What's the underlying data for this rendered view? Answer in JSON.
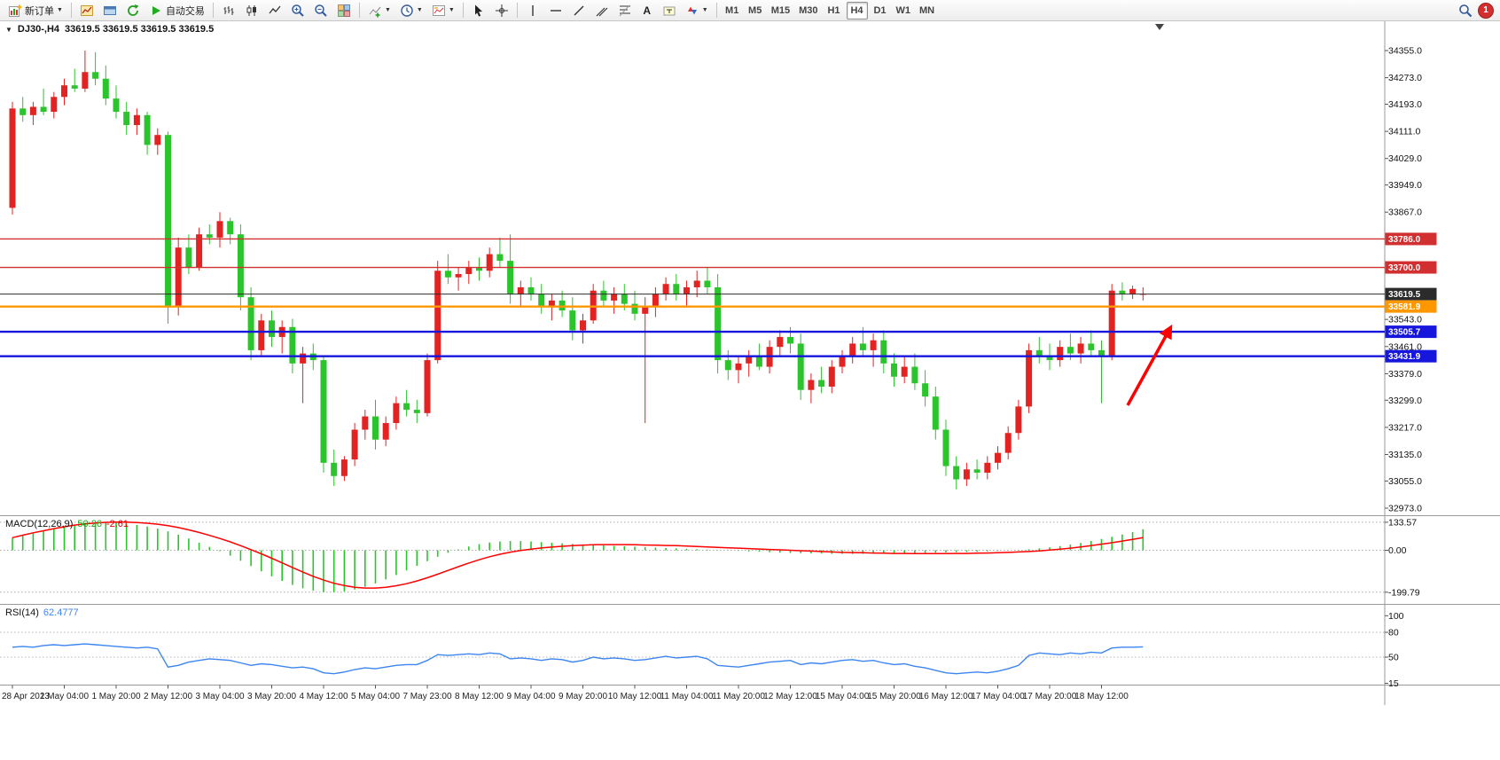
{
  "toolbar": {
    "new_order_label": "新订单",
    "autotrading_label": "自动交易",
    "timeframes": [
      "M1",
      "M5",
      "M15",
      "M30",
      "H1",
      "H4",
      "D1",
      "W1",
      "MN"
    ],
    "active_timeframe": "H4",
    "notification_count": "1"
  },
  "chart": {
    "symbol_period": "DJ30-,H4",
    "ohlc": "33619.5 33619.5 33619.5 33619.5"
  },
  "chart_data": [
    {
      "type": "candlestick",
      "title": "DJ30-,H4",
      "timeframe": "H4",
      "current_price": 33619.5,
      "colors": {
        "up": "#e32222",
        "down": "#2cc42c",
        "current_line": "#2b2b2b",
        "arrow": "#ff0000"
      },
      "y_axis_ticks": [
        "34355.0",
        "34273.0",
        "34193.0",
        "34111.0",
        "34029.0",
        "33949.0",
        "33867.0",
        "33543.0",
        "33461.0",
        "33379.0",
        "33299.0",
        "33217.0",
        "33135.0",
        "33055.0",
        "32973.0"
      ],
      "levels": [
        {
          "label": "33786.0",
          "value": 33786.0,
          "color": "#d23030",
          "thickness": 1.4
        },
        {
          "label": "33700.0",
          "value": 33700.0,
          "color": "#d23030",
          "thickness": 1.4
        },
        {
          "label": "33619.5",
          "value": 33619.5,
          "color": "#2b2b2b",
          "thickness": 1
        },
        {
          "label": "33581.9",
          "value": 33581.9,
          "color": "#ff9800",
          "thickness": 2.4
        },
        {
          "label": "33505.7",
          "value": 33505.7,
          "color": "#1616dd",
          "thickness": 2.4
        },
        {
          "label": "33431.9",
          "value": 33431.9,
          "color": "#1616dd",
          "thickness": 2.4
        }
      ],
      "x_labels": [
        "28 Apr 2023",
        "1 May 04:00",
        "1 May 20:00",
        "2 May 12:00",
        "3 May 04:00",
        "3 May 20:00",
        "4 May 12:00",
        "5 May 04:00",
        "7 May 23:00",
        "8 May 12:00",
        "9 May 04:00",
        "9 May 20:00",
        "10 May 12:00",
        "11 May 04:00",
        "11 May 20:00",
        "12 May 12:00",
        "15 May 04:00",
        "15 May 20:00",
        "16 May 12:00",
        "17 May 04:00",
        "17 May 20:00",
        "18 May 12:00"
      ],
      "x_label_step": 5,
      "candles": [
        [
          33880,
          34200,
          33860,
          34180
        ],
        [
          34180,
          34215,
          34140,
          34160
        ],
        [
          34160,
          34200,
          34130,
          34185
        ],
        [
          34185,
          34240,
          34160,
          34170
        ],
        [
          34170,
          34230,
          34150,
          34215
        ],
        [
          34215,
          34270,
          34190,
          34250
        ],
        [
          34250,
          34300,
          34230,
          34240
        ],
        [
          34240,
          34355,
          34230,
          34290
        ],
        [
          34290,
          34350,
          34250,
          34270
        ],
        [
          34270,
          34310,
          34190,
          34210
        ],
        [
          34210,
          34250,
          34150,
          34170
        ],
        [
          34170,
          34200,
          34100,
          34130
        ],
        [
          34130,
          34180,
          34100,
          34160
        ],
        [
          34160,
          34170,
          34040,
          34070
        ],
        [
          34070,
          34120,
          34040,
          34100
        ],
        [
          34100,
          34110,
          33530,
          33580
        ],
        [
          33580,
          33790,
          33555,
          33760
        ],
        [
          33760,
          33800,
          33680,
          33700
        ],
        [
          33700,
          33820,
          33690,
          33800
        ],
        [
          33800,
          33830,
          33770,
          33790
        ],
        [
          33790,
          33867,
          33760,
          33840
        ],
        [
          33840,
          33850,
          33770,
          33800
        ],
        [
          33800,
          33830,
          33570,
          33610
        ],
        [
          33610,
          33640,
          33420,
          33450
        ],
        [
          33450,
          33560,
          33430,
          33540
        ],
        [
          33540,
          33570,
          33460,
          33490
        ],
        [
          33490,
          33540,
          33440,
          33520
        ],
        [
          33520,
          33545,
          33380,
          33410
        ],
        [
          33410,
          33460,
          33290,
          33440
        ],
        [
          33440,
          33470,
          33390,
          33420
        ],
        [
          33420,
          33430,
          33080,
          33110
        ],
        [
          33110,
          33150,
          33040,
          33070
        ],
        [
          33070,
          33130,
          33055,
          33120
        ],
        [
          33120,
          33230,
          33100,
          33210
        ],
        [
          33210,
          33270,
          33180,
          33250
        ],
        [
          33250,
          33300,
          33150,
          33180
        ],
        [
          33180,
          33250,
          33160,
          33230
        ],
        [
          33230,
          33310,
          33210,
          33290
        ],
        [
          33290,
          33330,
          33250,
          33270
        ],
        [
          33270,
          33300,
          33230,
          33260
        ],
        [
          33260,
          33440,
          33250,
          33420
        ],
        [
          33420,
          33720,
          33410,
          33690
        ],
        [
          33690,
          33740,
          33650,
          33670
        ],
        [
          33670,
          33700,
          33630,
          33680
        ],
        [
          33680,
          33720,
          33650,
          33700
        ],
        [
          33700,
          33730,
          33660,
          33690
        ],
        [
          33690,
          33760,
          33670,
          33740
        ],
        [
          33740,
          33790,
          33700,
          33720
        ],
        [
          33720,
          33800,
          33590,
          33620
        ],
        [
          33620,
          33660,
          33580,
          33640
        ],
        [
          33640,
          33670,
          33600,
          33620
        ],
        [
          33620,
          33650,
          33560,
          33580
        ],
        [
          33580,
          33620,
          33540,
          33600
        ],
        [
          33600,
          33630,
          33550,
          33570
        ],
        [
          33570,
          33610,
          33480,
          33510
        ],
        [
          33510,
          33560,
          33470,
          33540
        ],
        [
          33540,
          33650,
          33530,
          33630
        ],
        [
          33630,
          33660,
          33580,
          33600
        ],
        [
          33600,
          33640,
          33560,
          33620
        ],
        [
          33620,
          33650,
          33570,
          33590
        ],
        [
          33590,
          33630,
          33540,
          33560
        ],
        [
          33560,
          33610,
          33230,
          33580
        ],
        [
          33580,
          33640,
          33550,
          33620
        ],
        [
          33620,
          33670,
          33600,
          33650
        ],
        [
          33650,
          33680,
          33600,
          33620
        ],
        [
          33620,
          33660,
          33580,
          33640
        ],
        [
          33640,
          33690,
          33610,
          33660
        ],
        [
          33660,
          33700,
          33620,
          33640
        ],
        [
          33640,
          33680,
          33380,
          33420
        ],
        [
          33420,
          33450,
          33360,
          33390
        ],
        [
          33390,
          33430,
          33350,
          33410
        ],
        [
          33410,
          33450,
          33370,
          33430
        ],
        [
          33430,
          33470,
          33390,
          33400
        ],
        [
          33400,
          33480,
          33380,
          33460
        ],
        [
          33460,
          33510,
          33430,
          33490
        ],
        [
          33490,
          33520,
          33440,
          33470
        ],
        [
          33470,
          33500,
          33300,
          33330
        ],
        [
          33330,
          33380,
          33290,
          33360
        ],
        [
          33360,
          33400,
          33320,
          33340
        ],
        [
          33340,
          33420,
          33320,
          33400
        ],
        [
          33400,
          33450,
          33380,
          33430
        ],
        [
          33430,
          33490,
          33410,
          33470
        ],
        [
          33470,
          33520,
          33430,
          33450
        ],
        [
          33450,
          33500,
          33400,
          33480
        ],
        [
          33480,
          33510,
          33380,
          33410
        ],
        [
          33410,
          33440,
          33340,
          33370
        ],
        [
          33370,
          33430,
          33350,
          33400
        ],
        [
          33400,
          33440,
          33330,
          33350
        ],
        [
          33350,
          33390,
          33280,
          33310
        ],
        [
          33310,
          33340,
          33180,
          33210
        ],
        [
          33210,
          33240,
          33070,
          33100
        ],
        [
          33100,
          33130,
          33030,
          33060
        ],
        [
          33060,
          33110,
          33040,
          33090
        ],
        [
          33090,
          33120,
          33060,
          33080
        ],
        [
          33080,
          33130,
          33060,
          33110
        ],
        [
          33110,
          33160,
          33090,
          33140
        ],
        [
          33140,
          33220,
          33120,
          33200
        ],
        [
          33200,
          33300,
          33180,
          33280
        ],
        [
          33280,
          33470,
          33260,
          33450
        ],
        [
          33450,
          33490,
          33410,
          33430
        ],
        [
          33430,
          33470,
          33390,
          33420
        ],
        [
          33420,
          33480,
          33400,
          33460
        ],
        [
          33460,
          33500,
          33420,
          33440
        ],
        [
          33440,
          33490,
          33410,
          33470
        ],
        [
          33470,
          33510,
          33430,
          33450
        ],
        [
          33450,
          33480,
          33290,
          33430
        ],
        [
          33430,
          33650,
          33420,
          33630
        ],
        [
          33630,
          33655,
          33600,
          33620
        ],
        [
          33620,
          33645,
          33605,
          33635
        ],
        [
          33619,
          33640,
          33600,
          33620
        ]
      ]
    },
    {
      "type": "macd",
      "label": "MACD(12,26,9)",
      "value_main": "50.26",
      "value_signal": "-2.61",
      "axis_labels": [
        "133.57",
        "0.00",
        "-199.79"
      ],
      "axis_values": [
        133.57,
        0,
        -199.79
      ],
      "histogram_color": "#2cc42c",
      "signal_color": "#ff0000",
      "histogram": [
        60,
        72,
        84,
        95,
        105,
        114,
        122,
        128,
        132,
        133,
        131,
        127,
        121,
        113,
        103,
        90,
        74,
        56,
        36,
        16,
        -4,
        -26,
        -50,
        -75,
        -100,
        -124,
        -146,
        -165,
        -181,
        -192,
        -199,
        -200,
        -196,
        -187,
        -174,
        -158,
        -139,
        -118,
        -96,
        -74,
        -52,
        -31,
        -12,
        4,
        18,
        29,
        37,
        42,
        44,
        44,
        42,
        39,
        36,
        33,
        30,
        27,
        25,
        23,
        21,
        19,
        17,
        15,
        13,
        11,
        9,
        7,
        5,
        3,
        1,
        -1,
        -3,
        -5,
        -7,
        -9,
        -11,
        -13,
        -14,
        -15,
        -16,
        -17,
        -17,
        -17,
        -17,
        -16,
        -16,
        -15,
        -14,
        -13,
        -12,
        -11,
        -10,
        -9,
        -8,
        -7,
        -5,
        -3,
        -1,
        2,
        5,
        9,
        14,
        20,
        27,
        35,
        44,
        54,
        64,
        75,
        87,
        100
      ],
      "signal": [
        60,
        72,
        83,
        93,
        103,
        112,
        120,
        126,
        130,
        133,
        134,
        134,
        132,
        129,
        124,
        117,
        108,
        97,
        85,
        71,
        56,
        40,
        22,
        3,
        -17,
        -38,
        -60,
        -82,
        -104,
        -124,
        -142,
        -157,
        -168,
        -176,
        -180,
        -180,
        -176,
        -169,
        -159,
        -146,
        -131,
        -114,
        -96,
        -78,
        -61,
        -45,
        -31,
        -19,
        -9,
        -1,
        5,
        11,
        15,
        19,
        22,
        24,
        26,
        27,
        27,
        27,
        26,
        25,
        24,
        23,
        22,
        20,
        18,
        16,
        14,
        12,
        10,
        8,
        6,
        4,
        2,
        0,
        -2,
        -4,
        -6,
        -8,
        -10,
        -11,
        -12,
        -13,
        -14,
        -15,
        -15,
        -16,
        -16,
        -16,
        -16,
        -15,
        -15,
        -14,
        -13,
        -12,
        -10,
        -8,
        -6,
        -3,
        1,
        5,
        10,
        16,
        22,
        29,
        36,
        44,
        52,
        60
      ]
    },
    {
      "type": "rsi",
      "label": "RSI(14)",
      "value": "62.4777",
      "axis_labels": [
        "100",
        "80",
        "50",
        "15"
      ],
      "axis_values": [
        100,
        80,
        50,
        15
      ],
      "line_color": "#3d85f0",
      "dotted_levels": [
        80,
        50
      ],
      "values": [
        62,
        63,
        62,
        64,
        65,
        64,
        65,
        66,
        65,
        64,
        63,
        62,
        61,
        62,
        60,
        38,
        40,
        44,
        46,
        48,
        47,
        46,
        43,
        40,
        42,
        41,
        39,
        37,
        38,
        36,
        31,
        30,
        32,
        35,
        37,
        36,
        38,
        40,
        41,
        41,
        46,
        53,
        52,
        53,
        54,
        53,
        55,
        54,
        48,
        49,
        48,
        46,
        48,
        47,
        44,
        46,
        50,
        48,
        49,
        48,
        46,
        47,
        49,
        51,
        49,
        50,
        51,
        48,
        40,
        39,
        38,
        40,
        42,
        44,
        45,
        46,
        41,
        43,
        42,
        44,
        46,
        47,
        45,
        46,
        43,
        41,
        42,
        39,
        37,
        34,
        31,
        30,
        31,
        32,
        31,
        33,
        36,
        40,
        52,
        55,
        54,
        53,
        55,
        54,
        56,
        55,
        61,
        62,
        62,
        62.4777
      ]
    }
  ]
}
